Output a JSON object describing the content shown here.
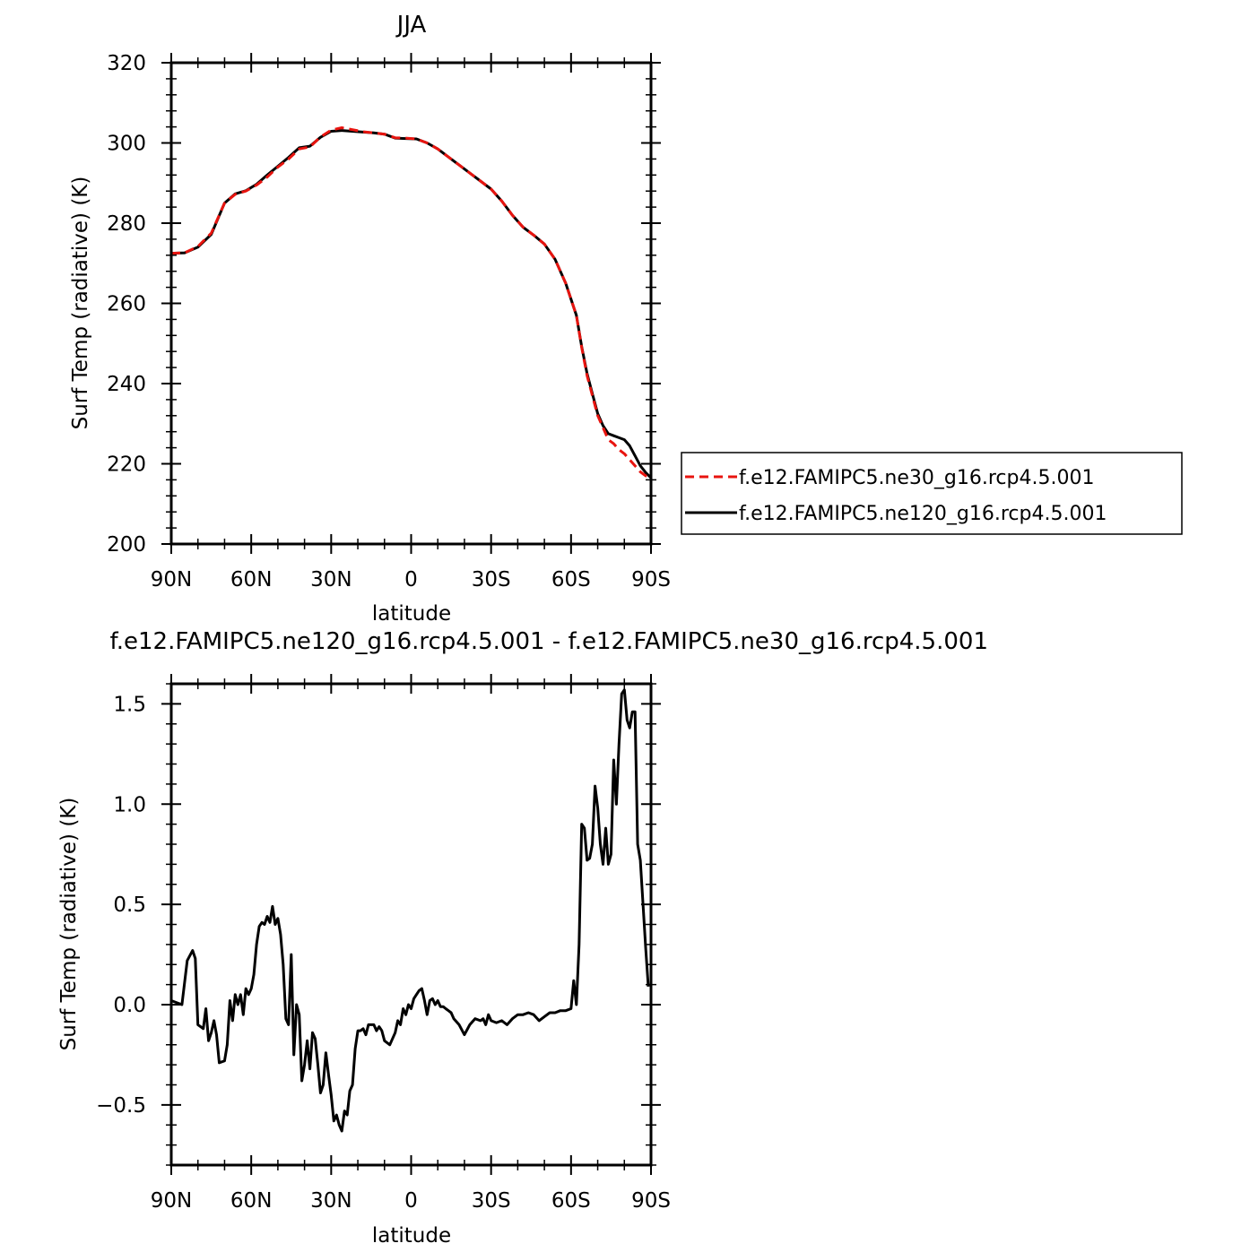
{
  "chart_data": [
    {
      "type": "line",
      "title": "JJA",
      "xlabel": "latitude",
      "ylabel": "Surf Temp (radiative) (K)",
      "xlim": [
        90,
        -90
      ],
      "ylim": [
        200,
        320
      ],
      "x_tick_values": [
        90,
        60,
        30,
        0,
        -30,
        -60,
        -90
      ],
      "x_tick_labels": [
        "90N",
        "60N",
        "30N",
        "0",
        "30S",
        "60S",
        "90S"
      ],
      "y_tick_values": [
        200,
        220,
        240,
        260,
        280,
        300,
        320
      ],
      "y_tick_labels": [
        "200",
        "220",
        "240",
        "260",
        "280",
        "300",
        "320"
      ],
      "legend_position": "right",
      "series": [
        {
          "name": "f.e12.FAMIPC5.ne30_g16.rcp4.5.001",
          "color": "#e8140f",
          "dash": "dashed",
          "x": [
            90,
            85,
            80,
            75,
            70,
            66,
            62,
            58,
            54,
            50,
            46,
            42,
            38,
            34,
            30,
            26,
            22,
            18,
            14,
            10,
            6,
            2,
            -2,
            -6,
            -10,
            -14,
            -18,
            -22,
            -26,
            -30,
            -34,
            -38,
            -42,
            -46,
            -50,
            -54,
            -58,
            -62,
            -64,
            -66,
            -68,
            -70,
            -72,
            -74,
            -76,
            -78,
            -80,
            -82,
            -84,
            -86,
            -88,
            -90
          ],
          "values": [
            272.5,
            272.6,
            274.2,
            277.5,
            285.0,
            287.2,
            288.0,
            289.5,
            291.5,
            294.0,
            296.0,
            298.5,
            299.0,
            301.5,
            303.2,
            303.8,
            303.3,
            302.8,
            302.5,
            302.2,
            301.3,
            301.2,
            301.0,
            300.0,
            298.5,
            296.5,
            294.5,
            292.5,
            290.5,
            288.5,
            285.5,
            282.0,
            279.0,
            277.0,
            274.8,
            271.0,
            265.0,
            257.0,
            249.0,
            242.0,
            237.0,
            232.0,
            229.0,
            226.0,
            225.0,
            223.5,
            222.5,
            221.0,
            219.5,
            218.0,
            217.0,
            216.5
          ]
        },
        {
          "name": "f.e12.FAMIPC5.ne120_g16.rcp4.5.001",
          "color": "#000000",
          "dash": "solid",
          "x": [
            90,
            85,
            80,
            75,
            70,
            66,
            62,
            58,
            54,
            50,
            46,
            42,
            38,
            34,
            30,
            26,
            22,
            18,
            14,
            10,
            6,
            2,
            -2,
            -6,
            -10,
            -14,
            -18,
            -22,
            -26,
            -30,
            -34,
            -38,
            -42,
            -46,
            -50,
            -54,
            -58,
            -62,
            -64,
            -66,
            -68,
            -70,
            -72,
            -74,
            -76,
            -78,
            -80,
            -82,
            -84,
            -86,
            -88,
            -90
          ],
          "values": [
            272.5,
            272.6,
            274.0,
            277.2,
            285.0,
            287.3,
            288.1,
            289.7,
            292.0,
            294.2,
            296.4,
            298.8,
            299.2,
            301.4,
            302.9,
            303.1,
            302.9,
            302.7,
            302.5,
            302.2,
            301.2,
            301.1,
            301.0,
            300.0,
            298.5,
            296.5,
            294.5,
            292.5,
            290.5,
            288.5,
            285.5,
            282.0,
            279.0,
            277.0,
            274.8,
            271.0,
            265.0,
            257.0,
            249.2,
            242.5,
            237.5,
            232.5,
            229.5,
            227.5,
            227.0,
            226.5,
            226.0,
            224.5,
            222.0,
            219.5,
            217.8,
            216.5
          ]
        }
      ]
    },
    {
      "type": "line",
      "title": "f.e12.FAMIPC5.ne120_g16.rcp4.5.001 - f.e12.FAMIPC5.ne30_g16.rcp4.5.001",
      "xlabel": "latitude",
      "ylabel": "Surf Temp (radiative) (K)",
      "xlim": [
        90,
        -90
      ],
      "ylim": [
        -0.8,
        1.6
      ],
      "x_tick_values": [
        90,
        60,
        30,
        0,
        -30,
        -60,
        -90
      ],
      "x_tick_labels": [
        "90N",
        "60N",
        "30N",
        "0",
        "30S",
        "60S",
        "90S"
      ],
      "y_tick_values": [
        -0.5,
        0.0,
        0.5,
        1.0,
        1.5
      ],
      "y_tick_labels": [
        "−0.5",
        "0.0",
        "0.5",
        "1.0",
        "1.5"
      ],
      "series": [
        {
          "color": "#000000",
          "dash": "solid",
          "x": [
            90,
            86,
            84,
            82,
            81,
            80,
            78,
            77,
            76,
            75,
            74,
            73,
            72,
            70,
            69,
            68,
            67,
            66,
            65,
            64,
            63,
            62,
            61,
            60,
            59,
            58,
            57,
            56,
            55,
            54,
            53,
            52,
            51,
            50,
            49,
            48,
            47,
            46,
            45,
            44,
            43,
            42,
            41,
            40,
            39,
            38,
            37,
            36,
            35,
            34,
            33,
            32,
            31,
            30,
            29,
            28,
            27,
            26,
            25,
            24,
            23,
            22,
            21,
            20,
            19,
            18,
            17,
            16,
            15,
            14,
            13,
            12,
            11,
            10,
            8,
            6,
            5,
            4,
            3,
            2,
            1,
            0,
            -1,
            -2,
            -3,
            -4,
            -5,
            -6,
            -7,
            -8,
            -9,
            -10,
            -11,
            -12,
            -13,
            -14,
            -15,
            -16,
            -18,
            -20,
            -22,
            -24,
            -26,
            -27,
            -28,
            -29,
            -30,
            -32,
            -34,
            -36,
            -38,
            -40,
            -42,
            -44,
            -46,
            -48,
            -50,
            -52,
            -54,
            -56,
            -58,
            -60,
            -61,
            -62,
            -63,
            -64,
            -65,
            -66,
            -67,
            -68,
            -69,
            -70,
            -71,
            -72,
            -73,
            -74,
            -75,
            -76,
            -77,
            -78,
            -79,
            -80,
            -81,
            -82,
            -83,
            -84,
            -85,
            -86,
            -87,
            -88,
            -89
          ],
          "values": [
            0.02,
            0.0,
            0.22,
            0.27,
            0.23,
            -0.1,
            -0.12,
            -0.02,
            -0.18,
            -0.14,
            -0.08,
            -0.15,
            -0.29,
            -0.28,
            -0.2,
            0.02,
            -0.08,
            0.05,
            0.0,
            0.05,
            -0.05,
            0.08,
            0.05,
            0.08,
            0.15,
            0.3,
            0.39,
            0.41,
            0.4,
            0.44,
            0.41,
            0.49,
            0.4,
            0.43,
            0.35,
            0.2,
            -0.07,
            -0.1,
            0.25,
            -0.25,
            0.0,
            -0.05,
            -0.38,
            -0.3,
            -0.18,
            -0.32,
            -0.14,
            -0.17,
            -0.3,
            -0.44,
            -0.4,
            -0.24,
            -0.35,
            -0.45,
            -0.58,
            -0.55,
            -0.6,
            -0.63,
            -0.53,
            -0.55,
            -0.43,
            -0.4,
            -0.22,
            -0.13,
            -0.13,
            -0.12,
            -0.15,
            -0.1,
            -0.1,
            -0.1,
            -0.13,
            -0.11,
            -0.13,
            -0.18,
            -0.2,
            -0.14,
            -0.08,
            -0.1,
            -0.02,
            -0.05,
            0.0,
            -0.02,
            0.03,
            0.05,
            0.07,
            0.08,
            0.02,
            -0.05,
            0.02,
            0.03,
            0.0,
            0.02,
            -0.01,
            -0.01,
            -0.02,
            -0.03,
            -0.04,
            -0.07,
            -0.1,
            -0.15,
            -0.1,
            -0.07,
            -0.08,
            -0.07,
            -0.1,
            -0.05,
            -0.08,
            -0.09,
            -0.08,
            -0.1,
            -0.07,
            -0.05,
            -0.05,
            -0.04,
            -0.05,
            -0.08,
            -0.06,
            -0.04,
            -0.04,
            -0.03,
            -0.03,
            -0.02,
            0.12,
            0.0,
            0.3,
            0.9,
            0.88,
            0.72,
            0.73,
            0.8,
            1.09,
            0.98,
            0.8,
            0.7,
            0.88,
            0.7,
            0.75,
            1.22,
            1.0,
            1.3,
            1.55,
            1.57,
            1.42,
            1.38,
            1.46,
            1.46,
            0.8,
            0.72,
            0.5,
            0.28,
            0.09
          ]
        }
      ]
    }
  ]
}
